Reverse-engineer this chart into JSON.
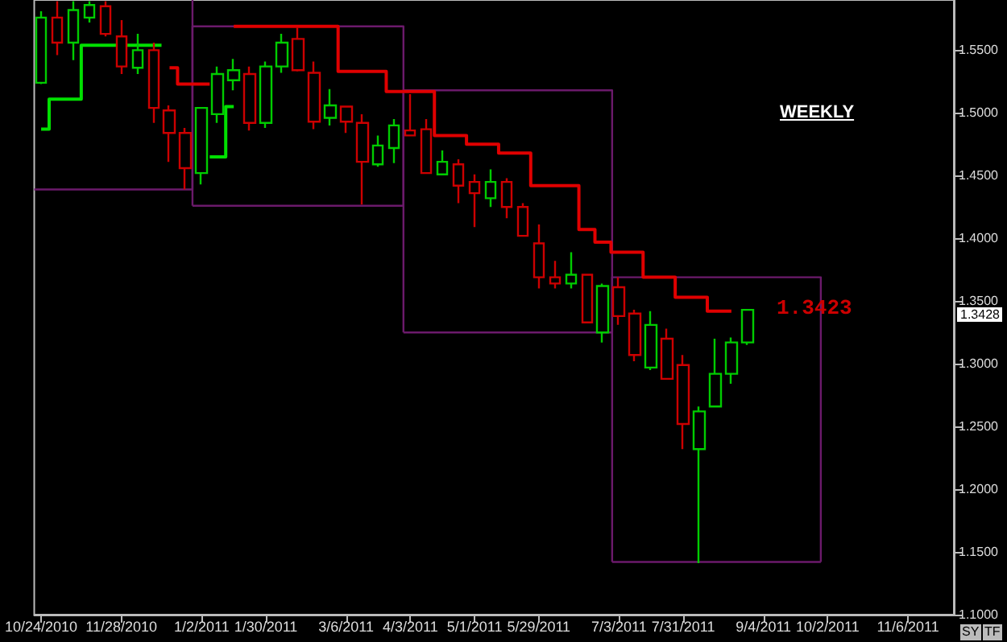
{
  "chart_data": {
    "type": "candlestick",
    "xlim": [
      "2010-10-21",
      "2011-11-26"
    ],
    "ylim": [
      1.1,
      1.59
    ],
    "xticks": [
      {
        "value": "2010-10-24",
        "label": "10/24/2010"
      },
      {
        "value": "2010-11-28",
        "label": "11/28/2010"
      },
      {
        "value": "2011-01-02",
        "label": "1/2/2011"
      },
      {
        "value": "2011-01-30",
        "label": "1/30/2011"
      },
      {
        "value": "2011-03-06",
        "label": "3/6/2011"
      },
      {
        "value": "2011-04-03",
        "label": "4/3/2011"
      },
      {
        "value": "2011-05-01",
        "label": "5/1/2011"
      },
      {
        "value": "2011-05-29",
        "label": "5/29/2011"
      },
      {
        "value": "2011-07-03",
        "label": "7/3/2011"
      },
      {
        "value": "2011-07-31",
        "label": "7/31/2011"
      },
      {
        "value": "2011-09-04",
        "label": "9/4/2011"
      },
      {
        "value": "2011-10-02",
        "label": "10/2/2011"
      },
      {
        "value": "2011-11-06",
        "label": "11/6/2011"
      }
    ],
    "yticks": [
      {
        "value": 1.1,
        "label": "1.1000"
      },
      {
        "value": 1.15,
        "label": "1.1500"
      },
      {
        "value": 1.2,
        "label": "1.2000"
      },
      {
        "value": 1.25,
        "label": "1.2500"
      },
      {
        "value": 1.3,
        "label": "1.3000"
      },
      {
        "value": 1.35,
        "label": "1.3500"
      },
      {
        "value": 1.4,
        "label": "1.4000"
      },
      {
        "value": 1.45,
        "label": "1.4500"
      },
      {
        "value": 1.5,
        "label": "1.5000"
      },
      {
        "value": 1.55,
        "label": "1.5500"
      }
    ],
    "annotations": [
      "WEEKLY",
      "SY",
      "TF",
      "1.3423",
      "1.3428"
    ],
    "series": [
      {
        "type": "line",
        "color": "#6b1a6b",
        "x": [
          "2010-10-21",
          "2010-12-29",
          "2010-12-29"
        ],
        "values": [
          1.439,
          1.439,
          1.59
        ]
      },
      {
        "type": "line",
        "color": "#6b1a6b",
        "x": [
          "2010-12-29",
          "2010-12-29",
          "2011-03-31",
          "2011-03-31"
        ],
        "values": [
          1.426,
          1.569,
          1.569,
          1.426
        ]
      },
      {
        "type": "line",
        "color": "#6b1a6b",
        "x": [
          "2010-12-29",
          "2011-03-31"
        ],
        "values": [
          1.426,
          1.426
        ]
      },
      {
        "type": "line",
        "color": "#6b1a6b",
        "x": [
          "2011-03-31",
          "2011-03-31",
          "2011-06-30",
          "2011-06-30"
        ],
        "values": [
          1.325,
          1.518,
          1.518,
          1.325
        ]
      },
      {
        "type": "line",
        "color": "#6b1a6b",
        "x": [
          "2011-03-31",
          "2011-06-30"
        ],
        "values": [
          1.325,
          1.325
        ]
      },
      {
        "type": "line",
        "color": "#6b1a6b",
        "x": [
          "2011-06-30",
          "2011-06-30",
          "2011-09-29",
          "2011-09-29"
        ],
        "values": [
          1.142,
          1.369,
          1.369,
          1.142
        ]
      },
      {
        "type": "line",
        "color": "#6b1a6b",
        "x": [
          "2011-06-30",
          "2011-09-29"
        ],
        "values": [
          1.142,
          1.142
        ]
      },
      {
        "type": "step",
        "color": "#00e000",
        "x": [
          "2010-10-24",
          "2010-10-31",
          "2010-11-07",
          "2010-11-14",
          "2010-11-21",
          "2010-11-28",
          "2011-01-02",
          "2011-01-09",
          "2011-01-16"
        ],
        "values": [
          1.487,
          1.511,
          1.511,
          1.554,
          1.554,
          1.554,
          null,
          1.465,
          1.505
        ]
      },
      {
        "type": "step",
        "color": "#e00000",
        "x": [
          "2010-12-19",
          "2010-12-26",
          "2011-01-02",
          "2011-01-09",
          "2011-01-23",
          "2011-01-30",
          "2011-02-06",
          "2011-02-13",
          "2011-02-20",
          "2011-02-27",
          "2011-03-06",
          "2011-03-13",
          "2011-03-20",
          "2011-03-27",
          "2011-04-03",
          "2011-04-10",
          "2011-04-17",
          "2011-04-24",
          "2011-05-01",
          "2011-05-08",
          "2011-05-15",
          "2011-05-22",
          "2011-05-29",
          "2011-06-05",
          "2011-06-12",
          "2011-06-19",
          "2011-06-26",
          "2011-07-03",
          "2011-07-10",
          "2011-07-17",
          "2011-07-24",
          "2011-07-31",
          "2011-08-07",
          "2011-08-14",
          "2011-08-21"
        ],
        "values": [
          1.536,
          1.523,
          1.523,
          null,
          1.569,
          1.569,
          1.569,
          1.569,
          1.569,
          1.569,
          1.533,
          1.533,
          1.533,
          1.517,
          1.517,
          1.517,
          1.482,
          1.482,
          1.475,
          1.475,
          1.468,
          1.468,
          1.442,
          1.442,
          1.442,
          1.407,
          1.397,
          1.389,
          1.389,
          1.369,
          1.369,
          1.353,
          1.353,
          1.342,
          1.342
        ]
      },
      {
        "x": [
          "2010-10-24",
          "2010-10-31",
          "2010-11-07",
          "2010-11-14",
          "2010-11-21",
          "2010-11-28",
          "2010-12-05",
          "2010-12-12",
          "2010-12-19",
          "2010-12-26",
          "2011-01-02",
          "2011-01-09",
          "2011-01-16",
          "2011-01-23",
          "2011-01-30",
          "2011-02-06",
          "2011-02-13",
          "2011-02-20",
          "2011-02-27",
          "2011-03-06",
          "2011-03-13",
          "2011-03-20",
          "2011-03-27",
          "2011-04-03",
          "2011-04-10",
          "2011-04-17",
          "2011-04-24",
          "2011-05-01",
          "2011-05-08",
          "2011-05-15",
          "2011-05-22",
          "2011-05-29",
          "2011-06-05",
          "2011-06-12",
          "2011-06-19",
          "2011-06-26",
          "2011-07-03",
          "2011-07-10",
          "2011-07-17",
          "2011-07-24",
          "2011-07-31",
          "2011-08-07",
          "2011-08-14",
          "2011-08-21",
          "2011-08-28"
        ],
        "ohlc": [
          [
            1.524,
            1.581,
            1.523,
            1.576
          ],
          [
            1.576,
            1.589,
            1.546,
            1.556
          ],
          [
            1.556,
            1.589,
            1.542,
            1.582
          ],
          [
            1.576,
            1.589,
            1.572,
            1.586
          ],
          [
            1.585,
            1.589,
            1.561,
            1.563
          ],
          [
            1.561,
            1.574,
            1.531,
            1.537
          ],
          [
            1.536,
            1.563,
            1.531,
            1.55
          ],
          [
            1.55,
            1.556,
            1.492,
            1.504
          ],
          [
            1.502,
            1.506,
            1.461,
            1.484
          ],
          [
            1.484,
            1.488,
            1.439,
            1.456
          ],
          [
            1.452,
            1.504,
            1.443,
            1.504
          ],
          [
            1.499,
            1.537,
            1.492,
            1.531
          ],
          [
            1.526,
            1.543,
            1.518,
            1.534
          ],
          [
            1.531,
            1.537,
            1.486,
            1.492
          ],
          [
            1.492,
            1.541,
            1.488,
            1.537
          ],
          [
            1.537,
            1.563,
            1.532,
            1.556
          ],
          [
            1.559,
            1.568,
            1.533,
            1.534
          ],
          [
            1.532,
            1.541,
            1.487,
            1.493
          ],
          [
            1.496,
            1.519,
            1.49,
            1.506
          ],
          [
            1.505,
            1.505,
            1.484,
            1.493
          ],
          [
            1.492,
            1.499,
            1.427,
            1.461
          ],
          [
            1.459,
            1.482,
            1.457,
            1.474
          ],
          [
            1.472,
            1.495,
            1.46,
            1.49
          ],
          [
            1.486,
            1.515,
            1.482,
            1.482
          ],
          [
            1.487,
            1.495,
            1.452,
            1.452
          ],
          [
            1.451,
            1.47,
            1.451,
            1.461
          ],
          [
            1.459,
            1.463,
            1.428,
            1.442
          ],
          [
            1.445,
            1.451,
            1.409,
            1.436
          ],
          [
            1.432,
            1.455,
            1.425,
            1.445
          ],
          [
            1.445,
            1.448,
            1.416,
            1.425
          ],
          [
            1.425,
            1.428,
            1.402,
            1.402
          ],
          [
            1.396,
            1.411,
            1.36,
            1.369
          ],
          [
            1.369,
            1.382,
            1.36,
            1.364
          ],
          [
            1.364,
            1.389,
            1.36,
            1.371
          ],
          [
            1.371,
            1.371,
            1.333,
            1.333
          ],
          [
            1.325,
            1.364,
            1.317,
            1.362
          ],
          [
            1.361,
            1.369,
            1.331,
            1.338
          ],
          [
            1.34,
            1.343,
            1.302,
            1.307
          ],
          [
            1.297,
            1.342,
            1.295,
            1.331
          ],
          [
            1.32,
            1.328,
            1.288,
            1.288
          ],
          [
            1.299,
            1.307,
            1.232,
            1.252
          ],
          [
            1.232,
            1.266,
            1.141,
            1.262
          ],
          [
            1.266,
            1.32,
            1.266,
            1.292
          ],
          [
            1.292,
            1.321,
            1.284,
            1.317
          ],
          [
            1.317,
            1.343,
            1.315,
            1.343
          ]
        ],
        "colors": [
          "#00cc00",
          "#cc0000",
          "#00cc00",
          "#00cc00",
          "#cc0000",
          "#cc0000",
          "#00cc00",
          "#cc0000",
          "#cc0000",
          "#cc0000",
          "#00cc00",
          "#00cc00",
          "#00cc00",
          "#cc0000",
          "#00cc00",
          "#00cc00",
          "#cc0000",
          "#cc0000",
          "#00cc00",
          "#cc0000",
          "#cc0000",
          "#00cc00",
          "#00cc00",
          "#cc0000",
          "#cc0000",
          "#00cc00",
          "#cc0000",
          "#cc0000",
          "#00cc00",
          "#cc0000",
          "#cc0000",
          "#cc0000",
          "#cc0000",
          "#00cc00",
          "#cc0000",
          "#00cc00",
          "#cc0000",
          "#cc0000",
          "#00cc00",
          "#cc0000",
          "#cc0000",
          "#00cc00",
          "#00cc00",
          "#00cc00",
          "#00cc00"
        ]
      }
    ]
  }
}
